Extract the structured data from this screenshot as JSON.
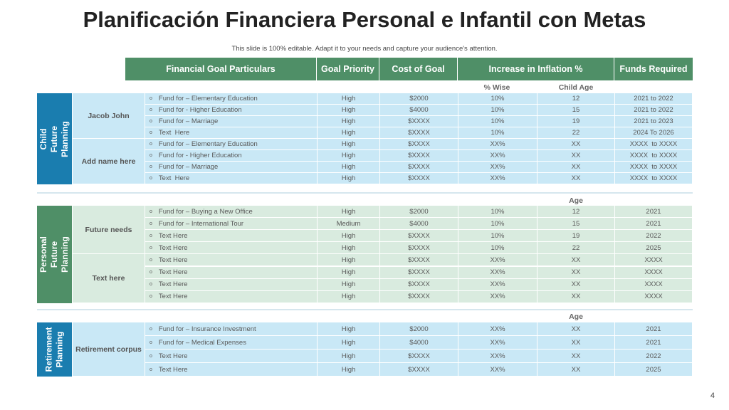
{
  "title": "Planificación Financiera Personal e Infantil con Metas",
  "subtitle": "This slide is 100% editable. Adapt it to your needs and capture your audience's attention.",
  "headers": [
    "Financial Goal Particulars",
    "Goal Priority",
    "Cost of Goal",
    "Increase in Inflation %",
    "Funds Required"
  ],
  "subheaders": {
    "wise": "% Wise",
    "child_age": "Child Age",
    "age": "Age"
  },
  "colors": {
    "header": "#4f8f67",
    "blue_label": "#1a7daf",
    "blue_row": "#c9e8f6",
    "green_label": "#4f8f67",
    "green_row": "#d9ebdf"
  },
  "sections": [
    {
      "label": "Child Future Planning",
      "groups": [
        {
          "name": "Jacob John",
          "rows": [
            [
              "Fund for – Elementary Education",
              "High",
              "$2000",
              "10%",
              "12",
              "2021 to 2022"
            ],
            [
              "Fund for - Higher Education",
              "High",
              "$4000",
              "10%",
              "15",
              "2021 to 2022"
            ],
            [
              "Fund for – Marriage",
              "High",
              "$XXXX",
              "10%",
              "19",
              "2021 to 2023"
            ],
            [
              "Text  Here",
              "High",
              "$XXXX",
              "10%",
              "22",
              "2024 To 2026"
            ]
          ]
        },
        {
          "name": "Add name here",
          "rows": [
            [
              "Fund for – Elementary Education",
              "High",
              "$XXXX",
              "XX%",
              "XX",
              "XXXX  to XXXX"
            ],
            [
              "Fund for - Higher Education",
              "High",
              "$XXXX",
              "XX%",
              "XX",
              "XXXX  to XXXX"
            ],
            [
              "Fund for – Marriage",
              "High",
              "$XXXX",
              "XX%",
              "XX",
              "XXXX  to XXXX"
            ],
            [
              "Text  Here",
              "High",
              "$XXXX",
              "XX%",
              "XX",
              "XXXX  to XXXX"
            ]
          ]
        }
      ]
    },
    {
      "label": "Personal Future Planning",
      "groups": [
        {
          "name": "Future needs",
          "rows": [
            [
              "Fund for – Buying a New Office",
              "High",
              "$2000",
              "10%",
              "12",
              "2021"
            ],
            [
              "Fund for – International Tour",
              "Medium",
              "$4000",
              "10%",
              "15",
              "2021"
            ],
            [
              "Text Here",
              "High",
              "$XXXX",
              "10%",
              "19",
              "2022"
            ],
            [
              "Text Here",
              "High",
              "$XXXX",
              "10%",
              "22",
              "2025"
            ]
          ]
        },
        {
          "name": "Text here",
          "rows": [
            [
              "Text Here",
              "High",
              "$XXXX",
              "XX%",
              "XX",
              "XXXX"
            ],
            [
              "Text Here",
              "High",
              "$XXXX",
              "XX%",
              "XX",
              "XXXX"
            ],
            [
              "Text Here",
              "High",
              "$XXXX",
              "XX%",
              "XX",
              "XXXX"
            ],
            [
              "Text Here",
              "High",
              "$XXXX",
              "XX%",
              "XX",
              "XXXX"
            ]
          ]
        }
      ]
    },
    {
      "label": "Retirement Planning",
      "groups": [
        {
          "name": "Retirement corpus",
          "rows": [
            [
              "Fund for – Insurance Investment",
              "High",
              "$2000",
              "XX%",
              "XX",
              "2021"
            ],
            [
              "Fund for – Medical Expenses",
              "High",
              "$4000",
              "XX%",
              "XX",
              "2021"
            ],
            [
              "Text Here",
              "High",
              "$XXXX",
              "XX%",
              "XX",
              "2022"
            ],
            [
              "Text Here",
              "High",
              "$XXXX",
              "XX%",
              "XX",
              "2025"
            ]
          ]
        }
      ]
    }
  ],
  "page_number": "4"
}
